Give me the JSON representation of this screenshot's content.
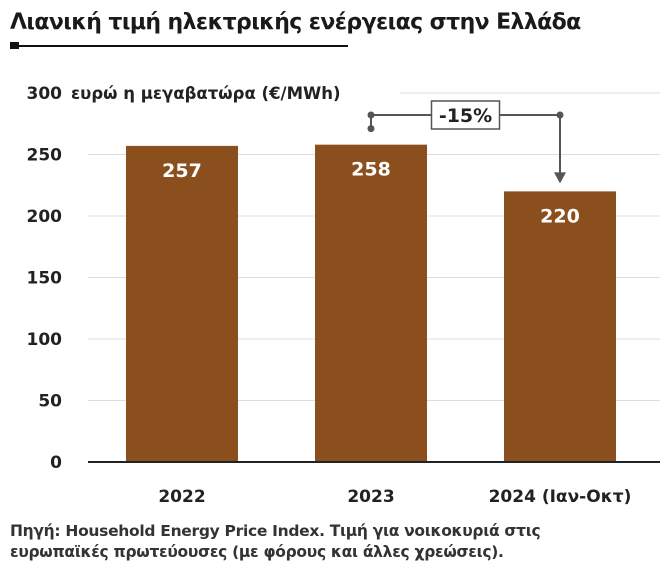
{
  "title": "Λιανική τιμή ηλεκτρικής ενέργειας στην Ελλάδα",
  "source": {
    "line1": "Πηγή: Household Energy Price Index. Τιμή για νοικοκυριά στις",
    "line2": "ευρωπαϊκές πρωτεύουσες (με φόρους και άλλες χρεώσεις)."
  },
  "colors": {
    "bar": "#8B4F1E",
    "grid": "#dddddd",
    "axis": "#222222",
    "label": "#ffffff"
  },
  "chart_data": {
    "type": "bar",
    "title": "Λιανική τιμή ηλεκτρικής ενέργειας στην Ελλάδα",
    "ylabel": "ευρώ η μεγαβατώρα (€/MWh)",
    "categories": [
      "2022",
      "2023",
      "2024 (Ιαν-Οκτ)"
    ],
    "values": [
      257,
      258,
      220
    ],
    "value_labels": [
      "257",
      "258",
      "220"
    ],
    "ylim": [
      0,
      300
    ],
    "yticks": [
      0,
      50,
      100,
      150,
      200,
      250,
      300
    ],
    "grid": true,
    "annotation": {
      "text": "-15%",
      "from_category": "2023",
      "to_category": "2024 (Ιαν-Οκτ)"
    }
  }
}
